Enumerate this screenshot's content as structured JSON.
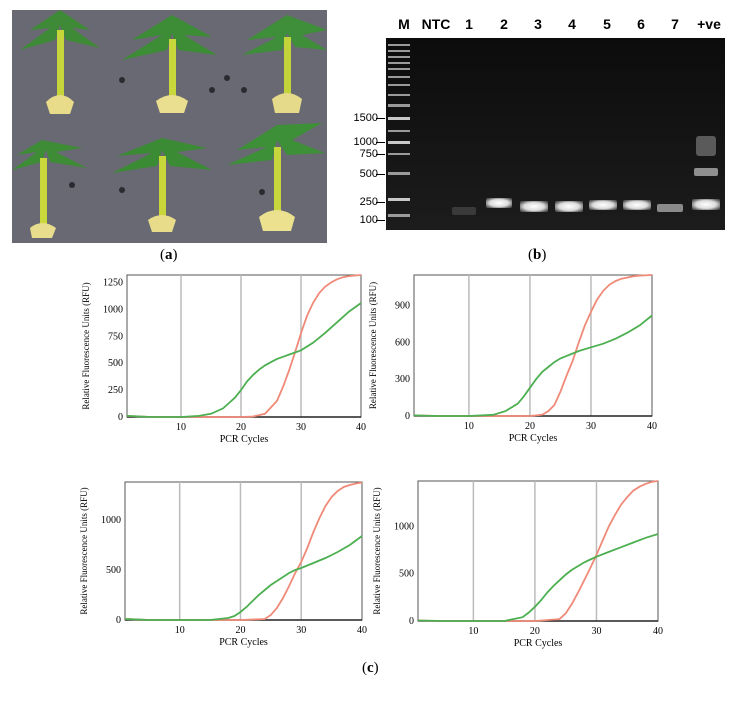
{
  "panels": {
    "a": {
      "label_open": "(",
      "letter": "a",
      "label_close": ")"
    },
    "b": {
      "label_open": "(",
      "letter": "b",
      "label_close": ")"
    },
    "c": {
      "label_open": "(",
      "letter": "c",
      "label_close": ")"
    }
  },
  "gel": {
    "lanes": [
      "M",
      "NTC",
      "1",
      "2",
      "3",
      "4",
      "5",
      "6",
      "7",
      "+ve"
    ],
    "marker_sizes": [
      "1500",
      "1000",
      "750",
      "500",
      "250",
      "100"
    ]
  },
  "colors": {
    "series_red": "#f08a78",
    "series_green": "#4caf50",
    "grid": "#bbbbbb"
  },
  "chart_data": [
    {
      "type": "line",
      "xlabel": "PCR Cycles",
      "ylabel": "Relative Fluorescence Units (RFU)",
      "xlim": [
        1,
        40
      ],
      "ylim": [
        0,
        1320
      ],
      "xticks": [
        10,
        20,
        30,
        40
      ],
      "yticks": [
        0,
        250,
        500,
        750,
        1000,
        1250
      ],
      "series": [
        {
          "name": "red",
          "x": [
            1,
            5,
            10,
            15,
            20,
            22,
            24,
            26,
            27,
            28,
            29,
            30,
            31,
            32,
            33,
            34,
            35,
            36,
            37,
            38,
            40
          ],
          "y": [
            10,
            0,
            0,
            0,
            0,
            5,
            30,
            150,
            280,
            430,
            600,
            780,
            940,
            1060,
            1150,
            1210,
            1250,
            1280,
            1300,
            1310,
            1320
          ]
        },
        {
          "name": "green",
          "x": [
            1,
            5,
            10,
            13,
            15,
            17,
            18,
            19,
            20,
            21,
            22,
            23,
            24,
            25,
            26,
            27,
            28,
            29,
            30,
            32,
            34,
            36,
            38,
            40
          ],
          "y": [
            10,
            0,
            0,
            10,
            30,
            80,
            130,
            180,
            250,
            330,
            390,
            440,
            480,
            510,
            540,
            560,
            580,
            600,
            620,
            690,
            780,
            880,
            980,
            1060
          ]
        }
      ]
    },
    {
      "type": "line",
      "xlabel": "PCR Cycles",
      "ylabel": "Relative Fluorescence Units (RFU)",
      "xlim": [
        1,
        40
      ],
      "ylim": [
        0,
        1150
      ],
      "xticks": [
        10,
        20,
        30,
        40
      ],
      "yticks": [
        0,
        300,
        600,
        900
      ],
      "series": [
        {
          "name": "red",
          "x": [
            1,
            5,
            10,
            15,
            20,
            22,
            23,
            24,
            25,
            26,
            27,
            28,
            29,
            30,
            31,
            32,
            33,
            34,
            35,
            36,
            37,
            38,
            40
          ],
          "y": [
            5,
            0,
            0,
            0,
            0,
            10,
            40,
            90,
            200,
            330,
            450,
            600,
            740,
            850,
            950,
            1020,
            1070,
            1100,
            1120,
            1130,
            1140,
            1145,
            1150
          ]
        },
        {
          "name": "green",
          "x": [
            1,
            5,
            10,
            14,
            16,
            18,
            19,
            20,
            21,
            22,
            23,
            24,
            25,
            26,
            27,
            28,
            30,
            32,
            34,
            36,
            38,
            40
          ],
          "y": [
            5,
            0,
            0,
            10,
            40,
            100,
            160,
            230,
            300,
            360,
            400,
            440,
            470,
            490,
            510,
            530,
            560,
            590,
            630,
            680,
            740,
            820
          ]
        }
      ]
    },
    {
      "type": "line",
      "xlabel": "PCR Cycles",
      "ylabel": "Relative Fluorescence Units (RFU)",
      "xlim": [
        1,
        40
      ],
      "ylim": [
        0,
        1380
      ],
      "xticks": [
        10,
        20,
        30,
        40
      ],
      "yticks": [
        0,
        500,
        1000
      ],
      "series": [
        {
          "name": "red",
          "x": [
            1,
            5,
            10,
            15,
            20,
            24,
            25,
            26,
            27,
            28,
            29,
            30,
            31,
            32,
            33,
            34,
            35,
            36,
            37,
            38,
            39,
            40
          ],
          "y": [
            10,
            0,
            0,
            0,
            0,
            10,
            50,
            120,
            220,
            340,
            470,
            580,
            720,
            880,
            1020,
            1140,
            1230,
            1290,
            1330,
            1350,
            1365,
            1375
          ]
        },
        {
          "name": "green",
          "x": [
            1,
            5,
            10,
            15,
            18,
            19,
            20,
            21,
            22,
            23,
            24,
            25,
            26,
            27,
            28,
            29,
            30,
            32,
            34,
            36,
            38,
            40
          ],
          "y": [
            10,
            0,
            0,
            0,
            20,
            40,
            80,
            130,
            190,
            250,
            300,
            350,
            390,
            430,
            470,
            500,
            520,
            570,
            620,
            680,
            750,
            840
          ]
        }
      ]
    },
    {
      "type": "line",
      "xlabel": "PCR Cycles",
      "ylabel": "Relative Fluorescence Units (RFU)",
      "xlim": [
        1,
        40
      ],
      "ylim": [
        0,
        1480
      ],
      "xticks": [
        10,
        20,
        30,
        40
      ],
      "yticks": [
        0,
        500,
        1000
      ],
      "series": [
        {
          "name": "red",
          "x": [
            1,
            5,
            10,
            15,
            20,
            24,
            25,
            26,
            27,
            28,
            29,
            30,
            31,
            32,
            33,
            34,
            35,
            36,
            37,
            38,
            39,
            40
          ],
          "y": [
            5,
            0,
            0,
            0,
            0,
            20,
            80,
            180,
            300,
            430,
            560,
            700,
            850,
            1000,
            1120,
            1230,
            1310,
            1380,
            1420,
            1450,
            1470,
            1480
          ]
        },
        {
          "name": "green",
          "x": [
            1,
            5,
            10,
            15,
            18,
            19,
            20,
            21,
            22,
            23,
            24,
            25,
            26,
            27,
            28,
            29,
            30,
            32,
            34,
            36,
            38,
            40
          ],
          "y": [
            5,
            0,
            0,
            0,
            40,
            90,
            150,
            220,
            300,
            370,
            430,
            490,
            540,
            580,
            620,
            650,
            680,
            730,
            780,
            830,
            880,
            920
          ]
        }
      ]
    }
  ]
}
